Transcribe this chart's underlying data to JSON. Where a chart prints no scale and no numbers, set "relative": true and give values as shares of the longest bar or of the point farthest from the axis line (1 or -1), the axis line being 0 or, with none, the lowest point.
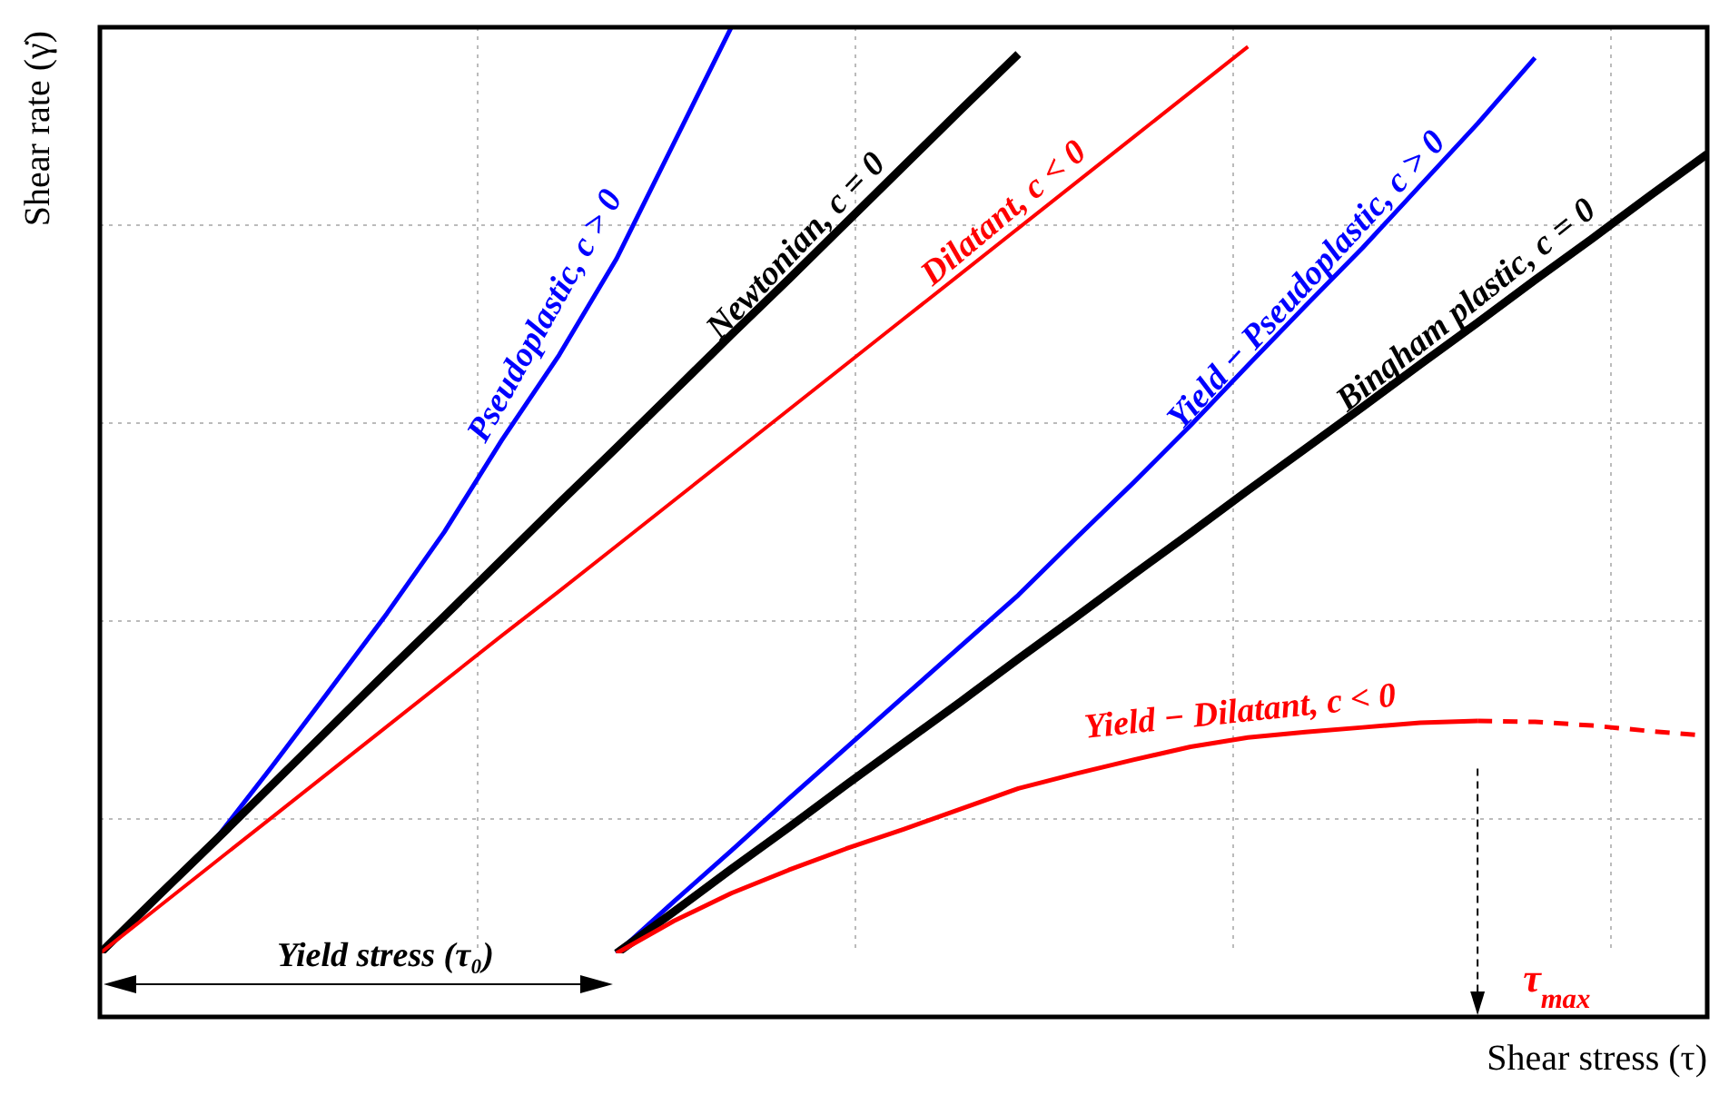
{
  "chart_data": {
    "type": "line",
    "relative": true,
    "grid": true,
    "xlabel": "Shear stress (τ)",
    "ylabel": "Shear rate (γ̇)",
    "categories": [
      null,
      null,
      null,
      null,
      null,
      null,
      null,
      null,
      null,
      null,
      null,
      null,
      null,
      null,
      null,
      null,
      null,
      null,
      null,
      null,
      null,
      null,
      null,
      null,
      null,
      null,
      null,
      null,
      null
    ],
    "series": [
      {
        "name": "Pseudoplastic, c > 0",
        "color": "#0000ff",
        "values": [
          0,
          0.061,
          0.122,
          0.202,
          0.284,
          0.367,
          0.455,
          0.554,
          0.646,
          0.75,
          0.875,
          1,
          null,
          null,
          null,
          null,
          null,
          null,
          null,
          null,
          null,
          null,
          null,
          null,
          null,
          null,
          null,
          null,
          null
        ]
      },
      {
        "name": "Newtonian, c = 0",
        "color": "#000000",
        "values": [
          0,
          0.061,
          0.121,
          0.182,
          0.243,
          0.304,
          0.364,
          0.425,
          0.486,
          0.546,
          0.607,
          0.668,
          0.728,
          0.789,
          0.85,
          0.911,
          0.971,
          null,
          null,
          null,
          null,
          null,
          null,
          null,
          null,
          null,
          null,
          null,
          null
        ]
      },
      {
        "name": "Dilatant, c < 0",
        "color": "#ff0000",
        "values": [
          0,
          0.049,
          0.098,
          0.147,
          0.196,
          0.245,
          0.294,
          0.343,
          0.391,
          0.44,
          0.489,
          0.538,
          0.587,
          0.636,
          0.685,
          0.734,
          0.783,
          0.832,
          0.881,
          0.93,
          0.979,
          null,
          null,
          null,
          null,
          null,
          null,
          null,
          null
        ]
      },
      {
        "name": "Yield − Pseudoplastic, c > 0",
        "color": "#0000ff",
        "values": [
          null,
          null,
          null,
          null,
          null,
          null,
          null,
          null,
          null,
          0,
          0.056,
          0.111,
          0.167,
          0.222,
          0.277,
          0.332,
          0.387,
          0.448,
          0.508,
          0.57,
          0.635,
          0.699,
          0.762,
          0.829,
          0.896,
          0.967,
          null,
          null,
          null
        ]
      },
      {
        "name": "Bingham plastic, c = 0",
        "color": "#000000",
        "values": [
          null,
          null,
          null,
          null,
          null,
          null,
          null,
          null,
          null,
          0,
          0.045,
          0.091,
          0.136,
          0.182,
          0.227,
          0.272,
          0.318,
          0.363,
          0.409,
          0.454,
          0.5,
          0.545,
          0.59,
          0.636,
          0.681,
          0.727,
          0.772,
          0.818,
          0.863
        ]
      },
      {
        "name": "Yield − Dilatant, c < 0",
        "color": "#ff0000",
        "values": [
          null,
          null,
          null,
          null,
          null,
          null,
          null,
          null,
          null,
          0,
          0.035,
          0.065,
          0.09,
          0.113,
          0.134,
          0.156,
          0.178,
          0.194,
          0.209,
          0.223,
          0.233,
          0.239,
          0.244,
          0.249,
          0.251,
          null,
          null,
          null,
          null
        ]
      },
      {
        "color": "#ff0000",
        "line_style": "dashed",
        "values": [
          null,
          null,
          null,
          null,
          null,
          null,
          null,
          null,
          null,
          null,
          null,
          null,
          null,
          null,
          null,
          null,
          null,
          null,
          null,
          null,
          null,
          null,
          null,
          null,
          0.251,
          0.25,
          0.246,
          0.24,
          0.235
        ]
      }
    ],
    "annotations": [
      "Yield stress (τ₀)",
      "τ$_{max}$"
    ]
  }
}
